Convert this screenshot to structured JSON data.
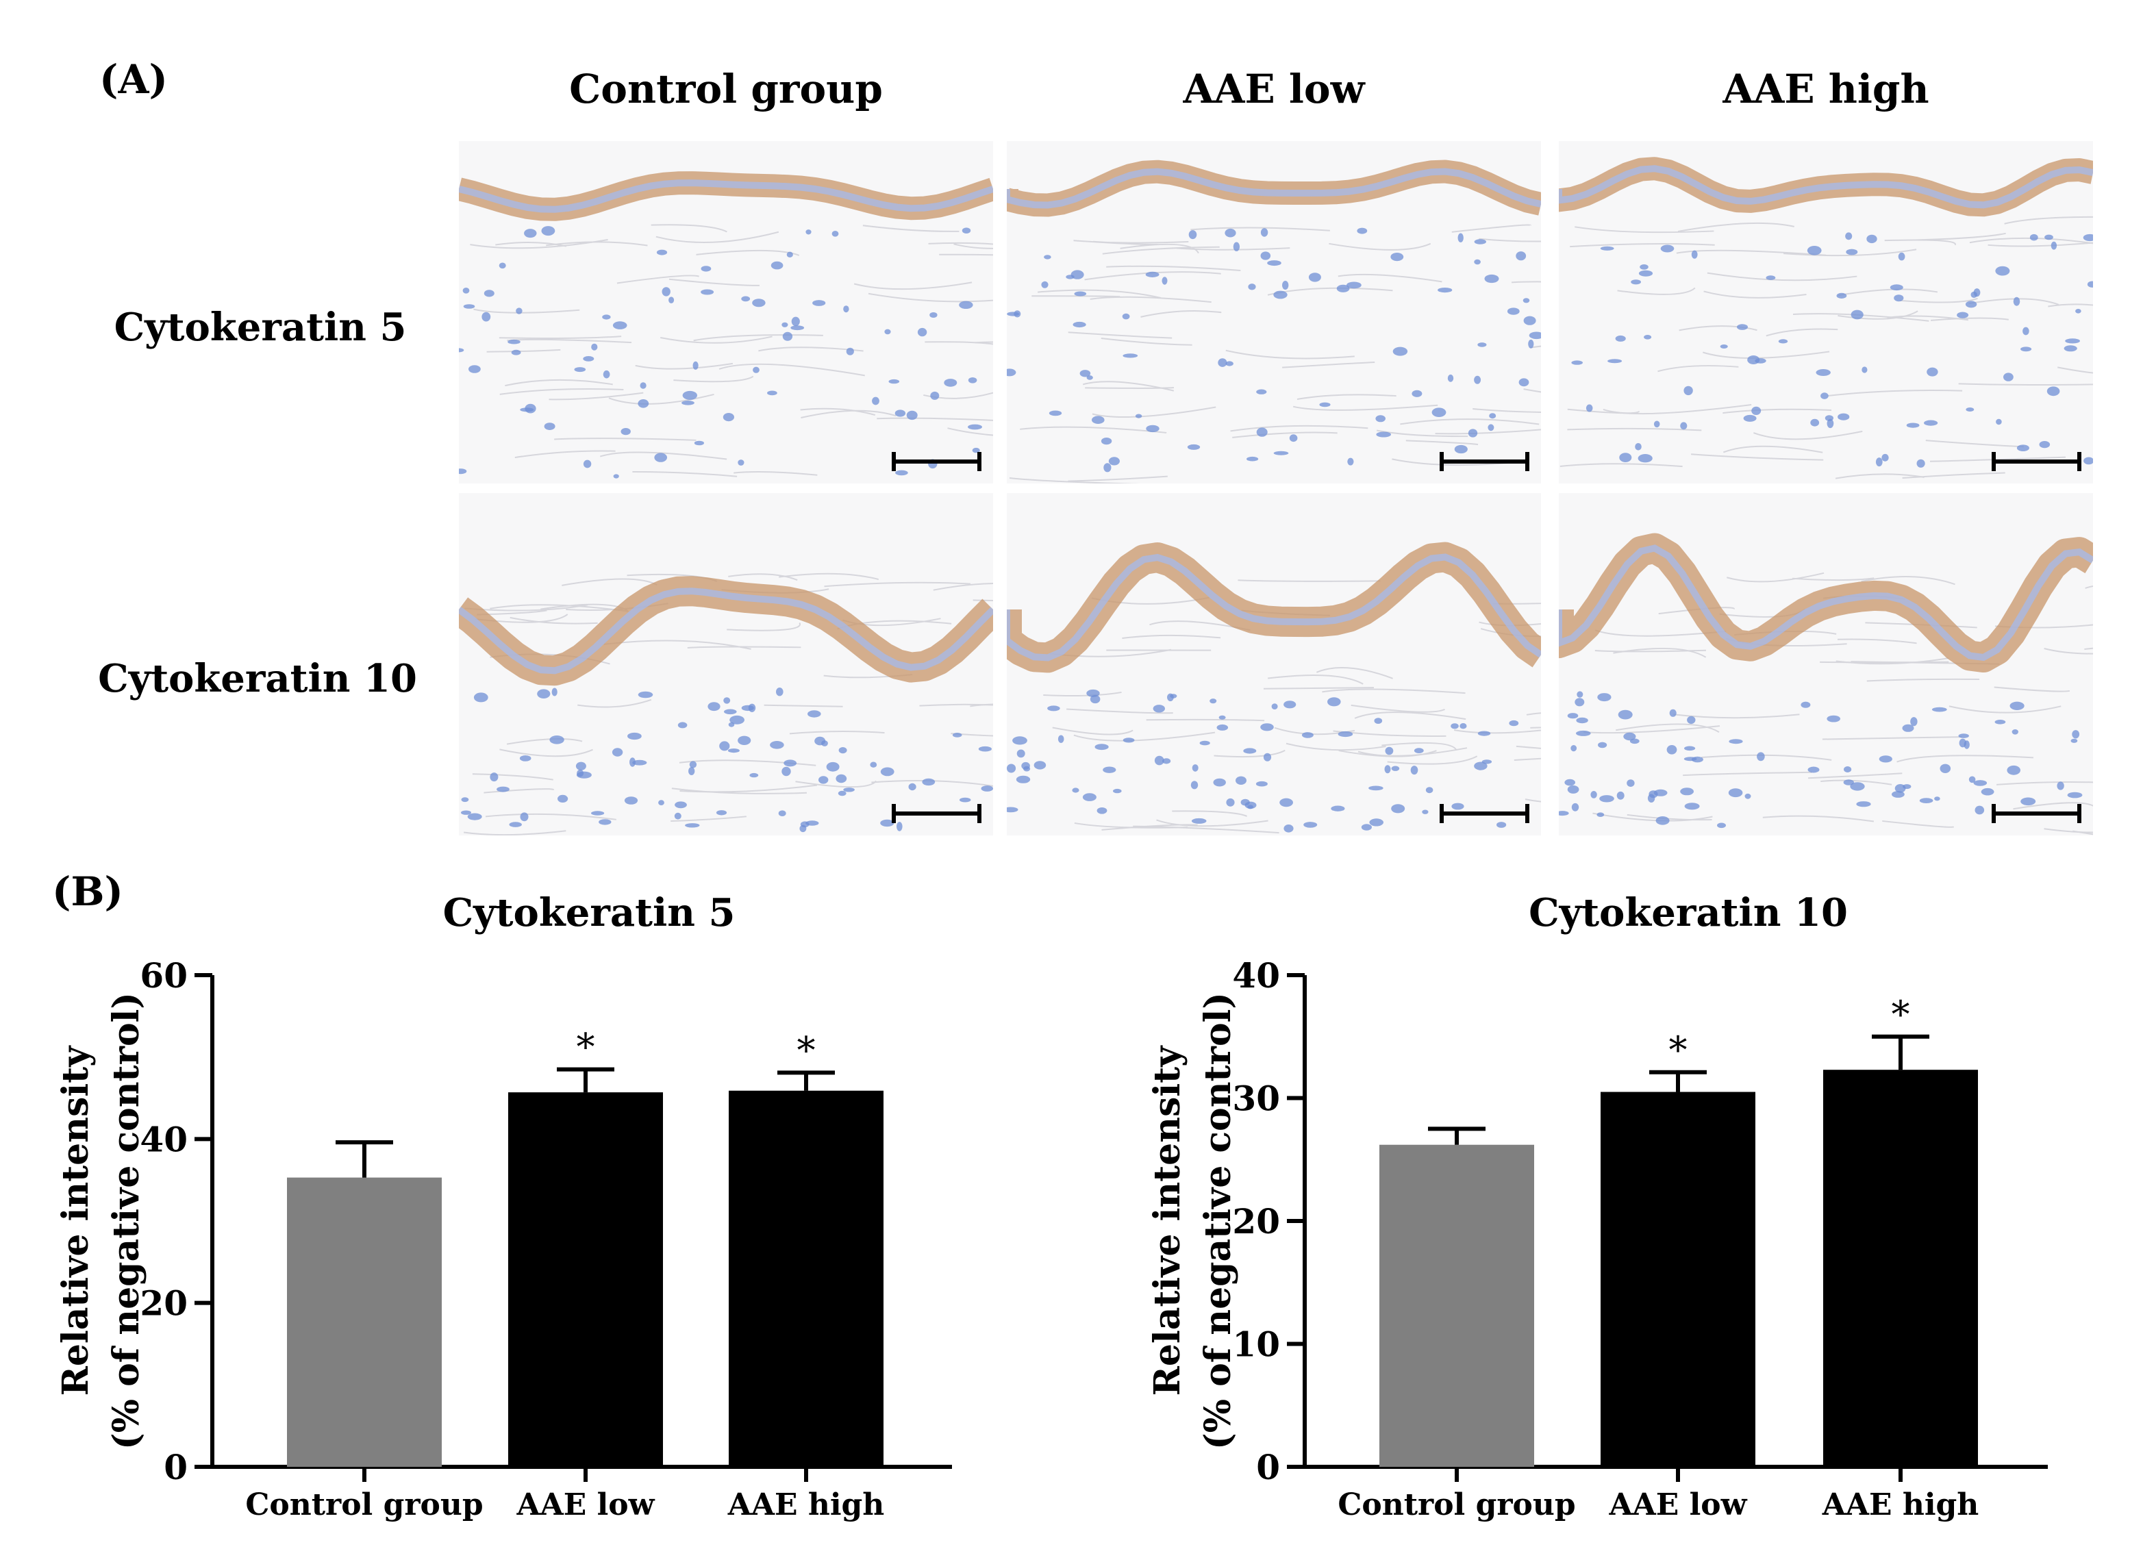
{
  "panel_a": {
    "label": "(A)",
    "columns": [
      "Control group",
      "AAE low",
      "AAE high"
    ],
    "rows": [
      "Cytokeratin 5",
      "Cytokeratin 10"
    ],
    "colors": {
      "stain_brown": "#c8966a",
      "nuclei_blue": "#6f8fd6",
      "background": "#f7f7f8"
    }
  },
  "panel_b": {
    "label": "(B)"
  },
  "chart_data": [
    {
      "type": "bar",
      "title": "Cytokeratin 5",
      "ylabel": "Relative  intensity",
      "ylabel2": "(% of negative control)",
      "categories": [
        "Control group",
        "AAE low",
        "AAE high"
      ],
      "values": [
        35.3,
        45.7,
        45.9
      ],
      "errors": [
        4.3,
        2.8,
        2.2
      ],
      "significance": [
        "",
        "*",
        "*"
      ],
      "colors": [
        "#808080",
        "#000000",
        "#000000"
      ],
      "ylim": [
        0,
        60
      ],
      "yticks": [
        0,
        20,
        40,
        60
      ],
      "grid": false
    },
    {
      "type": "bar",
      "title": "Cytokeratin 10",
      "ylabel": "Relative intensity",
      "ylabel2": "(% of negative control)",
      "categories": [
        "Control group",
        "AAE low",
        "AAE high"
      ],
      "values": [
        26.2,
        30.5,
        32.3
      ],
      "errors": [
        1.3,
        1.6,
        2.7
      ],
      "significance": [
        "",
        "*",
        "*"
      ],
      "colors": [
        "#808080",
        "#000000",
        "#000000"
      ],
      "ylim": [
        0,
        40
      ],
      "yticks": [
        0,
        10,
        20,
        30,
        40
      ],
      "grid": false
    }
  ]
}
